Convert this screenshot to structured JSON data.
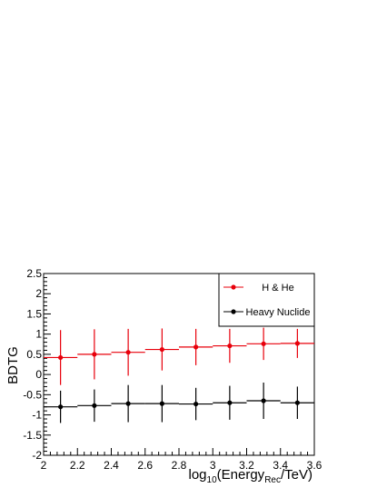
{
  "chart_data": {
    "type": "scatter",
    "ylabel": "BDTG",
    "xlabel_parts": {
      "base": "log",
      "base_sub": "10",
      "open": "(Energy",
      "energy_sub": "Rec",
      "close": "/TeV)"
    },
    "xlim": [
      2.0,
      3.6
    ],
    "ylim": [
      -2.0,
      2.5
    ],
    "x_ticks": [
      "2",
      "2.2",
      "2.4",
      "2.6",
      "2.8",
      "3",
      "3.2",
      "3.4",
      "3.6"
    ],
    "x_tick_values": [
      2.0,
      2.2,
      2.4,
      2.6,
      2.8,
      3.0,
      3.2,
      3.4,
      3.6
    ],
    "y_ticks": [
      "-2",
      "-1.5",
      "-1",
      "-0.5",
      "0",
      "0.5",
      "1",
      "1.5",
      "2",
      "2.5"
    ],
    "y_tick_values": [
      -2.0,
      -1.5,
      -1.0,
      -0.5,
      0.0,
      0.5,
      1.0,
      1.5,
      2.0,
      2.5
    ],
    "legend_position": "top-right",
    "series": [
      {
        "name": "H & He",
        "color": "#e8000b",
        "x": [
          2.1,
          2.3,
          2.5,
          2.7,
          2.9,
          3.1,
          3.3,
          3.5
        ],
        "x_err": [
          0.1,
          0.1,
          0.1,
          0.1,
          0.1,
          0.1,
          0.1,
          0.1
        ],
        "y": [
          0.42,
          0.5,
          0.55,
          0.62,
          0.68,
          0.71,
          0.76,
          0.77
        ],
        "y_err": [
          0.68,
          0.62,
          0.58,
          0.52,
          0.45,
          0.42,
          0.4,
          0.36
        ]
      },
      {
        "name": "Heavy Nuclide",
        "color": "#000000",
        "x": [
          2.1,
          2.3,
          2.5,
          2.7,
          2.9,
          3.1,
          3.3,
          3.5
        ],
        "x_err": [
          0.1,
          0.1,
          0.1,
          0.1,
          0.1,
          0.1,
          0.1,
          0.1
        ],
        "y": [
          -0.8,
          -0.77,
          -0.72,
          -0.72,
          -0.73,
          -0.7,
          -0.65,
          -0.7
        ],
        "y_err": [
          0.4,
          0.4,
          0.46,
          0.46,
          0.4,
          0.42,
          0.45,
          0.4
        ]
      }
    ]
  }
}
